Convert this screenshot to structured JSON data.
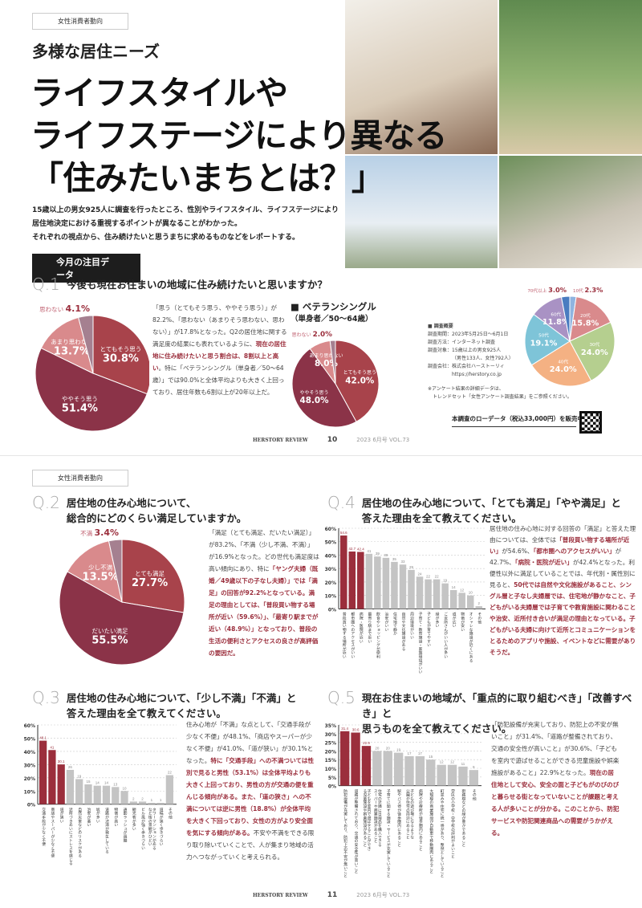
{
  "colors": {
    "accent": "#9b2e3c",
    "gray": "#bdbdbd"
  },
  "page10": {
    "tag": "女性消費者動向",
    "subtitle": "多様な居住ニーズ",
    "title": [
      "ライフスタイルや",
      "ライフステージにより異なる",
      "「住みたいまちとは？」"
    ],
    "lead": [
      "15歳以上の男女925人に調査を行ったところ、性別やライフスタイル、ライフステージにより",
      "居住地決定における重視するポイントが異なることがわかった。",
      "それぞれの視点から、住み続けたいと思うまちに求めるものなどをレポートする。"
    ],
    "highlight": "今月の注目データ",
    "q1": {
      "num": "Q.1",
      "text": "今後も現在お住まいの地域に住み続けたいと思いますか？",
      "body": {
        "a": "「思う（とてもそう思う、ややそう思う）」が82.2%、「思わない（あまりそう思わない、思わない）」が17.8%となった。Q2の居住地に関する満足度の結果にも表れているように、",
        "b": "現在の居住地に住み続けたいと思う割合は、8割以上と高い",
        "c": "。特に「ベテランシングル（単身者／50〜64歳）」では90.0%と全体平均よりも大きく上回っており、居住年数も6割以上が20年以上だ。"
      },
      "veteran_title": "■ ベテランシングル",
      "veteran_sub": "（単身者／50〜64歳）"
    },
    "survey": {
      "title": "■ 調査概要",
      "lines": [
        "調査期間：2023年5月25日〜6月1日",
        "調査方法：インターネット調査",
        "調査対象：15歳以上の男女925人",
        "（男性133人、女性792人）",
        "調査会社：株式会社ハーストーリィ",
        "https://herstory.co.jp"
      ],
      "note": [
        "※アンケート結果の詳細データは、",
        "トレンドセット「女性アンケート調査結果」をご参照ください。"
      ],
      "sale": "本調査のローデータ（税込33,000円）を販売中 ▶"
    },
    "footer": {
      "brand": "HERSTORY REVIEW",
      "page": "10",
      "issue": "2023 6月号 VOL.73"
    }
  },
  "page11": {
    "tag": "女性消費者動向",
    "q2": {
      "num": "Q.2",
      "text": [
        "居住地の住み心地について、",
        "総合的にどのくらい満足していますか。"
      ],
      "body": {
        "a": "「満足（とても満足、だいたい満足）」が83.2%、「不満（少し不満、不満）」が16.9%となった。どの世代も満足度は高い傾向にあり、特に",
        "b": "「ヤング夫婦（既婚／49歳以下の子なし夫婦）」では「満足」の回答が92.2%となっている。満足の理由としては、「普段買い物する場所が近い（59.6%）」、「最寄り駅までが近い（48.9%）」となっており、普段の生活の便利さとアクセスの良さが高評価の要因だ。"
      }
    },
    "q4": {
      "num": "Q.4",
      "text": [
        "居住地の住み心地について、「とても満足」「やや満足」と",
        "答えた理由を全て教えてください。"
      ],
      "body": {
        "a": "居住地の住み心地に対する回答の「満足」と答えた理由については、全体では",
        "b": "「普段買い物する場所が近い」",
        "c": "が54.6%、",
        "d": "「都市圏へのアクセスがいい」",
        "e": "が42.7%、",
        "f": "「病院・医院が近い」",
        "g": "が42.4%となった。利便性以外に満足していることでは、年代別・属性別に見ると、",
        "h": "50代では自然や文化施設があること、シングル層と子なし夫婦層では、住宅地が静かなこと、子どもがいる夫婦層では子育てや教育施設に関わることや治安、近所付き合いが満足の理由となっている。子どもがいる夫婦に向けて近所とコミュニケーションをとるためのアプリや施設、イベントなどに需要がありそうだ。"
      }
    },
    "q3": {
      "num": "Q.3",
      "text": [
        "居住地の住み心地について、「少し不満」「不満」と",
        "答えた理由を全て教えてください。"
      ],
      "body": {
        "a": "住み心地が「不満」な点として、「交通手段が少なく不便」が48.1%、「商店やスーパーが少なく不便」が41.0%、「道が狭い」が30.1%となった。",
        "b": "特に「交通手段」への不満ついては性別で見ると男性（53.1%）は全体平均よりも大きく上回っており、男性の方が交通の便を重んじる傾向がある。また、「道の狭さ」への不満については逆に男性（18.8%）が全体平均を大きく下回っており、女性の方がより安全面を気にする傾向がある。",
        "c": "不安や不満をできる限り取り除いていくことで、人が集まり地域の活力へつながっていくと考えられる。"
      }
    },
    "q5": {
      "num": "Q.5",
      "text": [
        "現在お住まいの地域が、「重点的に取り組むべき」「改善すべき」と",
        "思うものを全て教えてください。"
      ],
      "body": {
        "a": "「防犯設備が充実しており、防犯上の不安が無いこと」が31.4%、「道路が整備されており、交通の安全性が高いこと」が30.6%、「子どもを室内で遊ばせることができる児童施設や娯楽施設があること」22.9%となった。",
        "b": "現在の居住地として安心、安全の面と子どもがのびのびと暮らせる街となっていないことが課題と考える人が多いことが分かる。このことから、防犯サービスや防犯関連商品への需要がうかがえる。"
      }
    },
    "footer": {
      "brand": "HERSTORY REVIEW",
      "page": "11",
      "issue": "2023 6月号 VOL.73"
    }
  },
  "chart_data": [
    {
      "id": "q1",
      "type": "pie",
      "title": "Q.1 全体",
      "labels": [
        "とてもそう思う",
        "ややそう思う",
        "あまり思わない",
        "思わない"
      ],
      "values": [
        30.8,
        51.4,
        13.7,
        4.1
      ],
      "colors": [
        "#a8434b",
        "#8b3348",
        "#d98a8c",
        "#a58090"
      ]
    },
    {
      "id": "vet",
      "type": "pie",
      "title": "ベテランシングル",
      "labels": [
        "とてもそう思う",
        "ややそう思う",
        "あまり思わない",
        "思わない"
      ],
      "values": [
        42.0,
        48.0,
        8.0,
        2.0
      ],
      "colors": [
        "#a8434b",
        "#8b3348",
        "#d98a8c",
        "#a58090"
      ]
    },
    {
      "id": "age",
      "type": "pie",
      "title": "回答者年代",
      "labels": [
        "10代",
        "20代",
        "30代",
        "40代",
        "50代",
        "60代",
        "70代以上"
      ],
      "values": [
        2.3,
        15.8,
        24.0,
        24.0,
        19.1,
        11.8,
        3.0
      ],
      "colors": [
        "#8fb4e0",
        "#d98a8c",
        "#b5cf8f",
        "#f4b183",
        "#7ec4d8",
        "#a992c4",
        "#4a7cc0"
      ]
    },
    {
      "id": "q2",
      "type": "pie",
      "title": "Q.2",
      "labels": [
        "とても満足",
        "だいたい満足",
        "少し不満",
        "不満"
      ],
      "values": [
        27.7,
        55.5,
        13.5,
        3.4
      ],
      "colors": [
        "#a8434b",
        "#8b3348",
        "#d98a8c",
        "#a58090"
      ]
    },
    {
      "id": "q4",
      "type": "bar",
      "ylim": [
        0,
        60
      ],
      "ticks": [
        0,
        10,
        20,
        30,
        40,
        50,
        60
      ],
      "highlight": 3,
      "categories": [
        "普段買い物する場所が近い",
        "都市圏へのアクセスがいい",
        "病院・医院が近い",
        "最寄り駅まで近い",
        "飲食やショッピングが便利",
        "治安がいい",
        "住宅地で静か",
        "自然や文化施設がある",
        "周辺環境がいい",
        "子育て・教育施設・家族環境がいい",
        "子どもが育てやすい",
        "緑が多い",
        "ご近所さんがいい人が多い",
        "道が広い",
        "物価が安い",
        "オシャレな施設が近くにある",
        "その他"
      ],
      "values": [
        54.6,
        42.7,
        42.4,
        41,
        39,
        38,
        35,
        33,
        29,
        24,
        22,
        22,
        19,
        14,
        12,
        10,
        2
      ]
    },
    {
      "id": "q3",
      "type": "bar",
      "ylim": [
        0,
        60
      ],
      "ticks": [
        0,
        10,
        20,
        30,
        40,
        50,
        60
      ],
      "highlight": 3,
      "categories": [
        "交通手段が少なく不便",
        "商店やスーパーが少なく不便",
        "道が狭い",
        "近所づきあいにストレスを感じる",
        "自然災害などのリスクがある",
        "治安が悪い",
        "坂が多い",
        "道路が渋滞が発生している",
        "物価が高い",
        "通勤ラッシュが過酷",
        "観光客が多い",
        "ビル風が強く歩きづらい",
        "タワーマンションがあるなど街の景観がひどい",
        "道幅が狭く歩きづらい",
        "その他"
      ],
      "values": [
        48.1,
        41.0,
        30.1,
        26,
        19,
        15,
        14,
        14,
        13,
        10,
        2,
        2,
        1,
        1,
        22
      ]
    },
    {
      "id": "q5",
      "type": "bar",
      "ylim": [
        0,
        35
      ],
      "ticks": [
        0,
        5,
        10,
        15,
        20,
        25,
        30,
        35
      ],
      "highlight": 3,
      "categories": [
        "防犯設備が充実しており、防犯上の不安が無いこと",
        "道路が整備されており、交通の安全性が高いこと",
        "子どもを室内で遊ばせることができる児童施設や娯楽施設があること",
        "住宅の近隣に日用品を購入できるスーパーや商業施設があること",
        "子育てに関する施設・サービスが充実していること",
        "駅やバス停が徒歩圏内にあること",
        "子どもの遊び場になるような公園が住宅の周辺にあること",
        "病院や診療所が徒歩圏内にあること",
        "大規模の商業施設が自動車で移動圏内にあること",
        "町並みや住宅に統一感があり、整然としていること",
        "学区の小学校・中学校の評判がよいこと",
        "街路樹などの緑が豊かであること",
        "その他"
      ],
      "values": [
        31.4,
        30.6,
        22.9,
        20,
        20,
        19,
        17,
        17,
        15,
        12,
        12,
        11,
        9
      ]
    }
  ]
}
